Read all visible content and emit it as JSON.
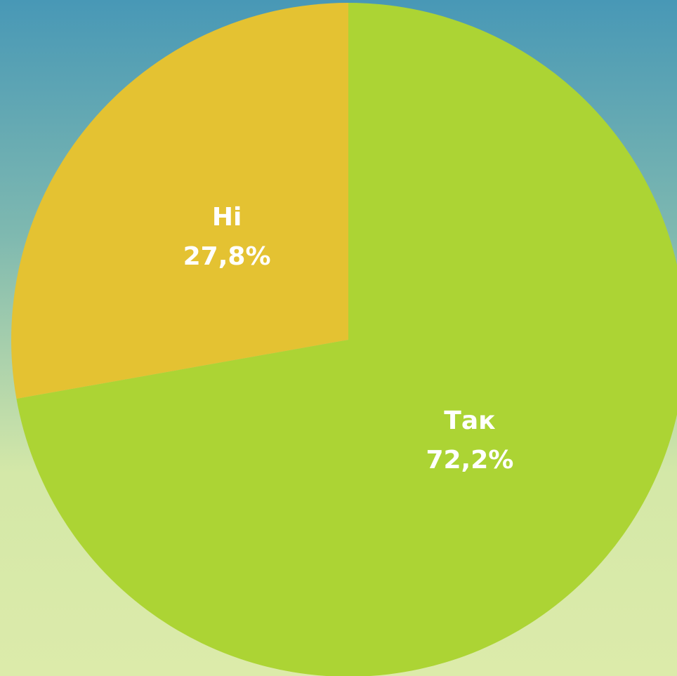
{
  "chart_data": {
    "type": "pie",
    "categories": [
      "Так",
      "Ні"
    ],
    "values": [
      72.2,
      27.8
    ],
    "value_labels": [
      "72,2%",
      "27,8%"
    ],
    "colors": [
      "#acd434",
      "#e4c232"
    ]
  }
}
